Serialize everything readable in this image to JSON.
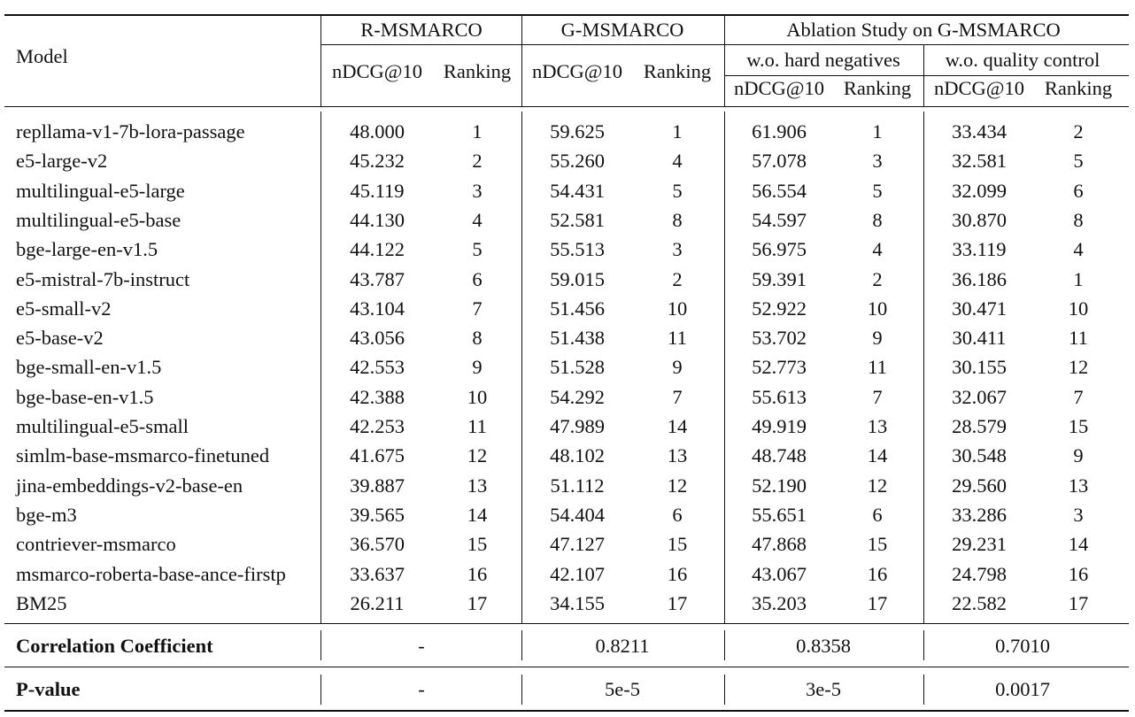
{
  "header": {
    "model": "Model",
    "groups": [
      "R-MSMARCO",
      "G-MSMARCO",
      "Ablation Study on G-MSMARCO"
    ],
    "subgroups": [
      "w.o. hard negatives",
      "w.o. quality control"
    ],
    "ndcg": "nDCG@10",
    "ranking": "Ranking"
  },
  "rows": [
    {
      "model": "repllama-v1-7b-lora-passage",
      "r_ndcg": "48.000",
      "r_rank": "1",
      "g_ndcg": "59.625",
      "g_rank": "1",
      "h_ndcg": "61.906",
      "h_rank": "1",
      "q_ndcg": "33.434",
      "q_rank": "2"
    },
    {
      "model": "e5-large-v2",
      "r_ndcg": "45.232",
      "r_rank": "2",
      "g_ndcg": "55.260",
      "g_rank": "4",
      "h_ndcg": "57.078",
      "h_rank": "3",
      "q_ndcg": "32.581",
      "q_rank": "5"
    },
    {
      "model": "multilingual-e5-large",
      "r_ndcg": "45.119",
      "r_rank": "3",
      "g_ndcg": "54.431",
      "g_rank": "5",
      "h_ndcg": "56.554",
      "h_rank": "5",
      "q_ndcg": "32.099",
      "q_rank": "6"
    },
    {
      "model": "multilingual-e5-base",
      "r_ndcg": "44.130",
      "r_rank": "4",
      "g_ndcg": "52.581",
      "g_rank": "8",
      "h_ndcg": "54.597",
      "h_rank": "8",
      "q_ndcg": "30.870",
      "q_rank": "8"
    },
    {
      "model": "bge-large-en-v1.5",
      "r_ndcg": "44.122",
      "r_rank": "5",
      "g_ndcg": "55.513",
      "g_rank": "3",
      "h_ndcg": "56.975",
      "h_rank": "4",
      "q_ndcg": "33.119",
      "q_rank": "4"
    },
    {
      "model": "e5-mistral-7b-instruct",
      "r_ndcg": "43.787",
      "r_rank": "6",
      "g_ndcg": "59.015",
      "g_rank": "2",
      "h_ndcg": "59.391",
      "h_rank": "2",
      "q_ndcg": "36.186",
      "q_rank": "1"
    },
    {
      "model": "e5-small-v2",
      "r_ndcg": "43.104",
      "r_rank": "7",
      "g_ndcg": "51.456",
      "g_rank": "10",
      "h_ndcg": "52.922",
      "h_rank": "10",
      "q_ndcg": "30.471",
      "q_rank": "10"
    },
    {
      "model": "e5-base-v2",
      "r_ndcg": "43.056",
      "r_rank": "8",
      "g_ndcg": "51.438",
      "g_rank": "11",
      "h_ndcg": "53.702",
      "h_rank": "9",
      "q_ndcg": "30.411",
      "q_rank": "11"
    },
    {
      "model": "bge-small-en-v1.5",
      "r_ndcg": "42.553",
      "r_rank": "9",
      "g_ndcg": "51.528",
      "g_rank": "9",
      "h_ndcg": "52.773",
      "h_rank": "11",
      "q_ndcg": "30.155",
      "q_rank": "12"
    },
    {
      "model": "bge-base-en-v1.5",
      "r_ndcg": "42.388",
      "r_rank": "10",
      "g_ndcg": "54.292",
      "g_rank": "7",
      "h_ndcg": "55.613",
      "h_rank": "7",
      "q_ndcg": "32.067",
      "q_rank": "7"
    },
    {
      "model": "multilingual-e5-small",
      "r_ndcg": "42.253",
      "r_rank": "11",
      "g_ndcg": "47.989",
      "g_rank": "14",
      "h_ndcg": "49.919",
      "h_rank": "13",
      "q_ndcg": "28.579",
      "q_rank": "15"
    },
    {
      "model": "simlm-base-msmarco-finetuned",
      "r_ndcg": "41.675",
      "r_rank": "12",
      "g_ndcg": "48.102",
      "g_rank": "13",
      "h_ndcg": "48.748",
      "h_rank": "14",
      "q_ndcg": "30.548",
      "q_rank": "9"
    },
    {
      "model": "jina-embeddings-v2-base-en",
      "r_ndcg": "39.887",
      "r_rank": "13",
      "g_ndcg": "51.112",
      "g_rank": "12",
      "h_ndcg": "52.190",
      "h_rank": "12",
      "q_ndcg": "29.560",
      "q_rank": "13"
    },
    {
      "model": "bge-m3",
      "r_ndcg": "39.565",
      "r_rank": "14",
      "g_ndcg": "54.404",
      "g_rank": "6",
      "h_ndcg": "55.651",
      "h_rank": "6",
      "q_ndcg": "33.286",
      "q_rank": "3"
    },
    {
      "model": "contriever-msmarco",
      "r_ndcg": "36.570",
      "r_rank": "15",
      "g_ndcg": "47.127",
      "g_rank": "15",
      "h_ndcg": "47.868",
      "h_rank": "15",
      "q_ndcg": "29.231",
      "q_rank": "14"
    },
    {
      "model": "msmarco-roberta-base-ance-firstp",
      "r_ndcg": "33.637",
      "r_rank": "16",
      "g_ndcg": "42.107",
      "g_rank": "16",
      "h_ndcg": "43.067",
      "h_rank": "16",
      "q_ndcg": "24.798",
      "q_rank": "16"
    },
    {
      "model": "BM25",
      "r_ndcg": "26.211",
      "r_rank": "17",
      "g_ndcg": "34.155",
      "g_rank": "17",
      "h_ndcg": "35.203",
      "h_rank": "17",
      "q_ndcg": "22.582",
      "q_rank": "17"
    }
  ],
  "correlation": {
    "label": "Correlation Coefficient",
    "r": "-",
    "g": "0.8211",
    "h": "0.8358",
    "q": "0.7010"
  },
  "pvalue": {
    "label": "P-value",
    "r": "-",
    "g": "5e-5",
    "h": "3e-5",
    "q": "0.0017"
  }
}
